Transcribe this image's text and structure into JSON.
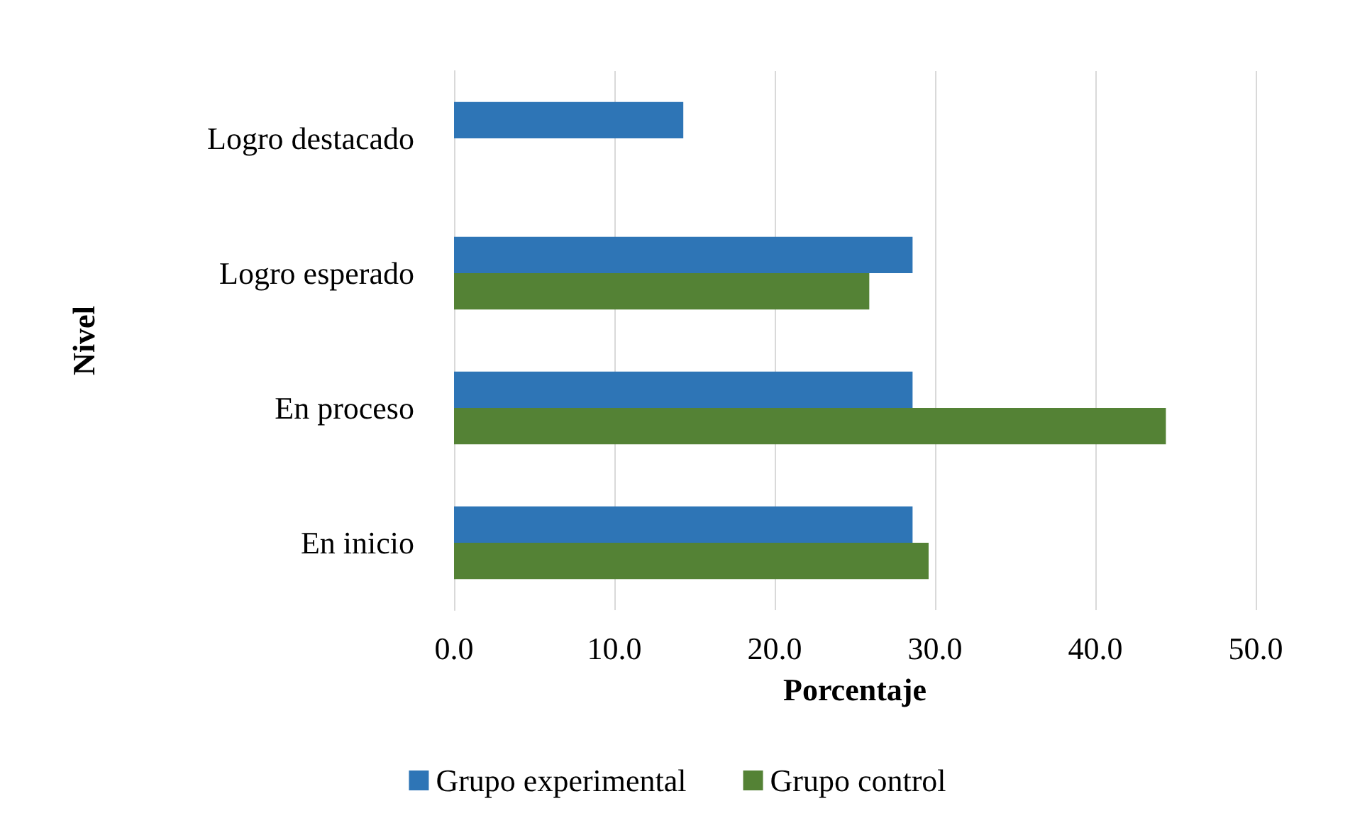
{
  "chart_data": {
    "type": "bar",
    "orientation": "horizontal",
    "xlabel": "Porcentaje",
    "ylabel": "Nivel",
    "categories": [
      "Logro destacado",
      "Logro esperado",
      "En proceso",
      "En inicio"
    ],
    "series": [
      {
        "name": "Grupo experimental",
        "color": "#2e75b6",
        "values": [
          14.3,
          28.6,
          28.6,
          28.6
        ]
      },
      {
        "name": "Grupo control",
        "color": "#548235",
        "values": [
          0,
          25.9,
          44.4,
          29.6
        ]
      }
    ],
    "xlim": [
      0,
      50
    ],
    "xticks": [
      {
        "value": 0,
        "label": "0.0"
      },
      {
        "value": 10,
        "label": "10.0"
      },
      {
        "value": 20,
        "label": "20.0"
      },
      {
        "value": 30,
        "label": "30.0"
      },
      {
        "value": 40,
        "label": "40.0"
      },
      {
        "value": 50,
        "label": "50.0"
      }
    ],
    "grid": "x",
    "legend": "bottom"
  }
}
